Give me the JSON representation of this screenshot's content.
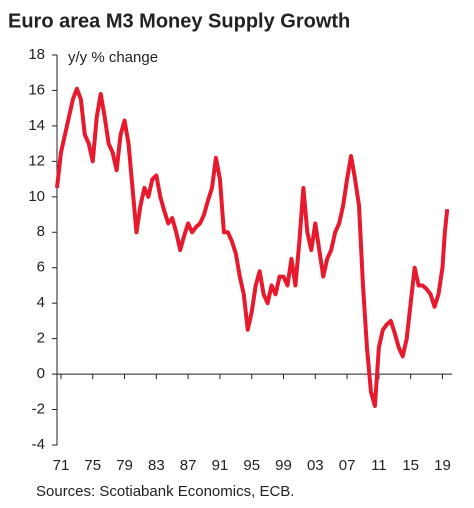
{
  "chart_data": {
    "type": "line",
    "title": "Euro area M3 Money Supply Growth",
    "ylabel": "y/y % change",
    "source": "Sources: Scotiabank Economics, ECB.",
    "x": [
      1970.5,
      1971,
      1971.5,
      1972,
      1972.5,
      1973,
      1973.5,
      1974,
      1974.5,
      1975,
      1975.5,
      1976,
      1976.5,
      1977,
      1977.5,
      1978,
      1978.5,
      1979,
      1979.5,
      1980,
      1980.5,
      1981,
      1981.5,
      1982,
      1982.5,
      1983,
      1983.5,
      1984,
      1984.5,
      1985,
      1985.5,
      1986,
      1986.5,
      1987,
      1987.5,
      1988,
      1988.5,
      1989,
      1989.5,
      1990,
      1990.5,
      1991,
      1991.5,
      1992,
      1992.5,
      1993,
      1993.5,
      1994,
      1994.5,
      1995,
      1995.5,
      1996,
      1996.5,
      1997,
      1997.5,
      1998,
      1998.5,
      1999,
      1999.5,
      2000,
      2000.5,
      2001,
      2001.5,
      2002,
      2002.5,
      2003,
      2003.5,
      2004,
      2004.5,
      2005,
      2005.5,
      2006,
      2006.5,
      2007,
      2007.5,
      2008,
      2008.5,
      2009,
      2009.5,
      2010,
      2010.5,
      2011,
      2011.5,
      2012,
      2012.5,
      2013,
      2013.5,
      2014,
      2014.5,
      2015,
      2015.5,
      2016,
      2016.5,
      2017,
      2017.5,
      2018,
      2018.5,
      2019,
      2019.3,
      2019.6
    ],
    "series": [
      {
        "name": "M3",
        "color": "#e8192c",
        "values": [
          10.5,
          12.5,
          13.5,
          14.5,
          15.5,
          16.1,
          15.5,
          13.5,
          13,
          12,
          14.5,
          15.8,
          14.5,
          13,
          12.5,
          11.5,
          13.5,
          14.3,
          13,
          10.5,
          8,
          9.5,
          10.5,
          10,
          11,
          11.2,
          10,
          9.2,
          8.5,
          8.8,
          8,
          7,
          7.8,
          8.5,
          8,
          8.3,
          8.5,
          9,
          9.8,
          10.5,
          12.2,
          11,
          8,
          8,
          7.5,
          6.8,
          5.5,
          4.5,
          2.5,
          3.5,
          5,
          5.8,
          4.5,
          4,
          5,
          4.5,
          5.5,
          5.5,
          5,
          6.5,
          5,
          7.5,
          10.5,
          8,
          7,
          8.5,
          7,
          5.5,
          6.5,
          7,
          8,
          8.5,
          9.5,
          11,
          12.3,
          11,
          9.5,
          5,
          1.5,
          -1,
          -1.8,
          1.5,
          2.5,
          2.8,
          3,
          2.3,
          1.5,
          1,
          2,
          4,
          6,
          5,
          5,
          4.8,
          4.5,
          3.8,
          4.5,
          6,
          8,
          9.3
        ]
      }
    ],
    "xlim": [
      1970.5,
      2020.2
    ],
    "xticks": [
      {
        "value": 1971,
        "label": "71"
      },
      {
        "value": 1975,
        "label": "75"
      },
      {
        "value": 1979,
        "label": "79"
      },
      {
        "value": 1983,
        "label": "83"
      },
      {
        "value": 1987,
        "label": "87"
      },
      {
        "value": 1991,
        "label": "91"
      },
      {
        "value": 1995,
        "label": "95"
      },
      {
        "value": 1999,
        "label": "99"
      },
      {
        "value": 2003,
        "label": "03"
      },
      {
        "value": 2007,
        "label": "07"
      },
      {
        "value": 2011,
        "label": "11"
      },
      {
        "value": 2015,
        "label": "15"
      },
      {
        "value": 2019,
        "label": "19"
      }
    ],
    "ylim": [
      -4,
      18
    ],
    "yticks": [
      -4,
      -2,
      0,
      2,
      4,
      6,
      8,
      10,
      12,
      14,
      16,
      18
    ]
  }
}
